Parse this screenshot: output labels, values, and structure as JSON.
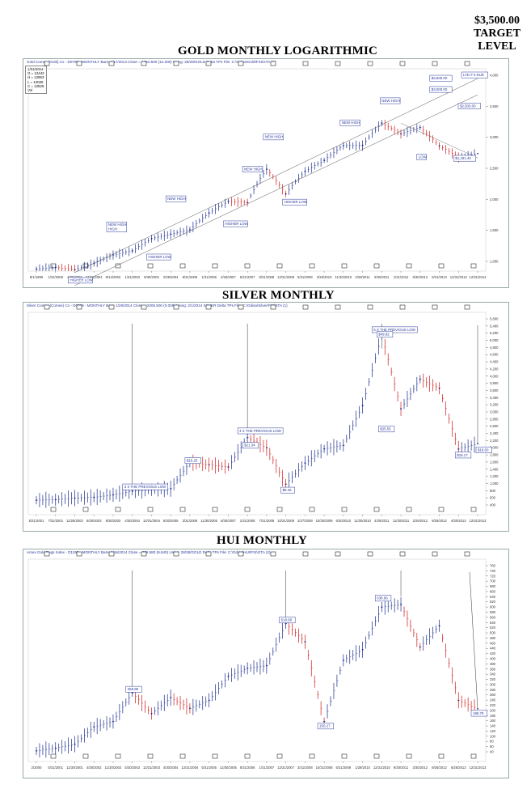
{
  "target": {
    "price": "$3,500.00",
    "line1": "TARGET",
    "line2": "LEVEL"
  },
  "charts": [
    {
      "id": "gold",
      "title": "GOLD MONTHLY LOGARITHMIC",
      "header": "Gold Comex (Gold) Cx - D0798 - MONTHLY  Bars: 1/17/2014 Close = 1252.500 (12.300)        Using: 28/28/GOLD Delta TPs    File: C:\\Gdisa\\Gold\\FSI\\GTA (1)",
      "ohlc": [
        "1/31/2014",
        "O = 12442",
        "H = 12853",
        "L = 12025",
        "C = 12525",
        "Vol"
      ],
      "chart_data": {
        "type": "line",
        "scale": "log",
        "x": [
          "8/1/1999",
          "1/31/2000",
          "4/30/2001",
          "12/31/2001",
          "8/14/2002",
          "1/31/2003",
          "9/30/2003",
          "2/29/2004",
          "8/31/2005",
          "1/31/2006",
          "2/28/2007",
          "5/31/2007",
          "8/31/2008",
          "12/31/2008",
          "5/31/2009",
          "2/26/2010",
          "11/30/2010",
          "2/28/2011",
          "9/30/2011",
          "1/31/2012",
          "9/30/2012",
          "5/31/2013",
          "12/31/2013",
          "12/31/2014"
        ],
        "values": [
          257,
          263,
          255,
          278,
          312,
          330,
          390,
          415,
          440,
          555,
          650,
          640,
          1010,
          720,
          980,
          1140,
          1395,
          1400,
          1900,
          1640,
          1790,
          1390,
          1190,
          1252
        ],
        "ylim": [
          250,
          4000
        ],
        "y_ticks": [
          "4,000",
          "3,500",
          "3,000",
          "2,500",
          "2,000",
          "1,500",
          "1,000"
        ],
        "annotations": [
          "NEW HIGH",
          "NEW HIGH",
          "NEW HIGH",
          "NEW HIGH",
          "NEW HIGH",
          "NEW HIGH",
          "HIGHER LOW",
          "HIGHER LOW",
          "HIGHER LOW",
          "HIGHER LOW",
          "LOW",
          "$3,500.00",
          "$3,000.00",
          "$2,500.00",
          "$1,181.40",
          "LTD # 3 DUE"
        ]
      }
    },
    {
      "id": "silver",
      "title": "SILVER MONTHLY",
      "header": "Silver Comex (Comex) Cx - D0798 - MONTHLY  Bars: 1/29/2014 Close = 2005.500 (0.009)        Using: 2/1/2014 SILVER Delta TPs    File: C:\\Gdisa\\Silver\\FSI\\STA (1)",
      "chart_data": {
        "type": "line",
        "x": [
          "5/31/2001",
          "7/31/2001",
          "11/28/2002",
          "5/30/2003",
          "9/30/2003",
          "4/30/2004",
          "12/31/2004",
          "6/30/2005",
          "3/31/2006",
          "11/30/2006",
          "6/30/2007",
          "1/31/2008",
          "7/31/2008",
          "10/31/2008",
          "2/27/2009",
          "10/30/2009",
          "6/30/2010",
          "11/30/2010",
          "4/29/2011",
          "11/30/2011",
          "2/29/2012",
          "9/28/2012",
          "4/30/2013",
          "12/31/2013"
        ],
        "values": [
          4.01,
          4.15,
          4.6,
          4.8,
          5.5,
          6.49,
          6.9,
          7.2,
          14.5,
          13.8,
          13.2,
          21.34,
          18.5,
          8.45,
          14.3,
          18.2,
          19.2,
          30.2,
          49.82,
          29.3,
          37.5,
          35.0,
          18.17,
          19.6
        ],
        "ylim": [
          0,
          56
        ],
        "y_ticks": [
          "5,600",
          "5,400",
          "5,200",
          "5,000",
          "4,800",
          "4,600",
          "4,400",
          "4,200",
          "4,000",
          "3,800",
          "3,600",
          "3,400",
          "3,200",
          "3,000",
          "2,800",
          "2,600",
          "2,400",
          "2,200",
          "2,000",
          "1,800",
          "1,600",
          "1,400",
          "1,200",
          "1,000",
          "800",
          "600",
          "400"
        ],
        "annotations": [
          "3 X THE PREVIOUS LOW",
          "4 X THE PREVIOUS LOW",
          "5 X THE PREVIOUS LOW",
          "$21.34",
          "$15.25",
          "$8.45",
          "$49.82",
          "$25.55",
          "$18.17",
          "$19.60"
        ]
      }
    },
    {
      "id": "hui",
      "title": "HUI MONTHLY",
      "header": "Amex Gold Bugs Index - D1268 - MONTHLY  Bars: 1/16/2014 Close = 206.580 (9.940)        Using: 28/28/GOLD Delta TPs    File: C:\\Gdisa\\HUI\\FSI\\GTA (2)",
      "chart_data": {
        "type": "line",
        "x": [
          "2/2000",
          "5/31/2001",
          "11/30/2001",
          "4/30/2002",
          "11/30/2002",
          "5/30/2003",
          "12/31/2003",
          "4/30/2004",
          "12/31/2004",
          "5/31/2005",
          "12/30/2005",
          "5/31/2006",
          "1/31/2007",
          "12/31/2007",
          "3/31/2008",
          "10/31/2008",
          "5/31/2009",
          "1/29/2010",
          "12/31/2010",
          "9/30/2011",
          "3/30/2012",
          "9/28/2012",
          "6/28/2013",
          "12/31/2013"
        ],
        "values": [
          40,
          50,
          65,
          130,
          150,
          258,
          180,
          240,
          200,
          230,
          320,
          350,
          360,
          518,
          450,
          150,
          380,
          420,
          580,
          590,
          430,
          510,
          230,
          198
        ],
        "ylim": [
          0,
          760
        ],
        "y_ticks": [
          "760",
          "740",
          "720",
          "700",
          "680",
          "660",
          "640",
          "620",
          "600",
          "580",
          "560",
          "540",
          "520",
          "500",
          "480",
          "460",
          "440",
          "420",
          "400",
          "380",
          "360",
          "340",
          "320",
          "300",
          "280",
          "260",
          "240",
          "220",
          "200",
          "180",
          "160",
          "140",
          "120",
          "100",
          "80",
          "60",
          "40"
        ],
        "annotations": [
          "258.89",
          "518.68",
          "150.27",
          "638.96",
          "186.79"
        ]
      }
    }
  ]
}
